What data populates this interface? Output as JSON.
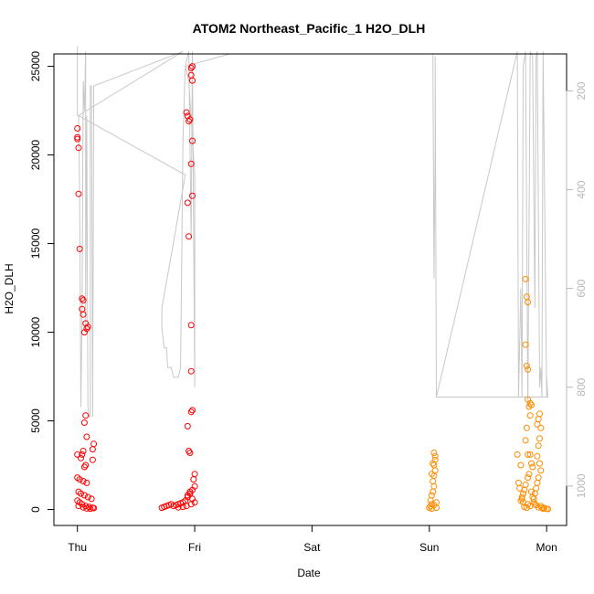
{
  "chart_data": {
    "type": "scatter",
    "title": "ATOM2 Northeast_Pacific_1 H2O_DLH",
    "xlabel": "Date",
    "ylabel": "H2O_DLH",
    "x_ticks": [
      "Thu",
      "Fri",
      "Sat",
      "Sun",
      "Mon"
    ],
    "x_range_days": [
      -0.2,
      4.17
    ],
    "ylim": [
      -900,
      25700
    ],
    "y_ticks": [
      0,
      5000,
      10000,
      15000,
      20000,
      25000
    ],
    "y2_ticks": [
      200,
      400,
      600,
      800,
      1000
    ],
    "y2lim": [
      1080,
      125
    ],
    "grid": false,
    "colors": {
      "flight1": "#ff0000",
      "flight2": "#ff8c00",
      "pressure": "#c8c8c8",
      "right_axis": "#b8b8b8"
    },
    "series": [
      {
        "color": "#ff0000",
        "points": [
          [
            0.0,
            21500
          ],
          [
            0.0,
            21000
          ],
          [
            0.01,
            20400
          ],
          [
            0.0,
            20900
          ],
          [
            0.01,
            17800
          ],
          [
            0.02,
            14700
          ],
          [
            0.04,
            11900
          ],
          [
            0.05,
            11800
          ],
          [
            0.04,
            11300
          ],
          [
            0.05,
            11000
          ],
          [
            0.06,
            10000
          ],
          [
            0.07,
            10500
          ],
          [
            0.08,
            10200
          ],
          [
            0.09,
            10300
          ],
          [
            0.07,
            5300
          ],
          [
            0.06,
            4900
          ],
          [
            0.08,
            4100
          ],
          [
            0.14,
            3700
          ],
          [
            0.13,
            3400
          ],
          [
            0.05,
            3300
          ],
          [
            0.04,
            3100
          ],
          [
            0.0,
            3100
          ],
          [
            0.03,
            2900
          ],
          [
            0.07,
            2500
          ],
          [
            0.06,
            2400
          ],
          [
            0.13,
            2800
          ],
          [
            0.0,
            1800
          ],
          [
            0.02,
            1700
          ],
          [
            0.05,
            1600
          ],
          [
            0.08,
            1500
          ],
          [
            0.01,
            1000
          ],
          [
            0.03,
            900
          ],
          [
            0.06,
            800
          ],
          [
            0.09,
            700
          ],
          [
            0.12,
            600
          ],
          [
            0.0,
            500
          ],
          [
            0.02,
            400
          ],
          [
            0.04,
            300
          ],
          [
            0.07,
            200
          ],
          [
            0.1,
            150
          ],
          [
            0.13,
            100
          ],
          [
            0.11,
            50
          ],
          [
            0.14,
            80
          ],
          [
            0.01,
            200
          ],
          [
            0.05,
            120
          ],
          [
            0.08,
            60
          ],
          [
            0.72,
            100
          ],
          [
            0.74,
            150
          ],
          [
            0.76,
            200
          ],
          [
            0.78,
            250
          ],
          [
            0.8,
            300
          ],
          [
            0.82,
            200
          ],
          [
            0.84,
            250
          ],
          [
            0.86,
            300
          ],
          [
            0.88,
            350
          ],
          [
            0.9,
            400
          ],
          [
            0.92,
            500
          ],
          [
            0.94,
            700
          ],
          [
            0.96,
            900
          ],
          [
            0.98,
            1100
          ],
          [
            1.0,
            1300
          ],
          [
            0.93,
            22400
          ],
          [
            0.94,
            22200
          ],
          [
            0.95,
            21900
          ],
          [
            0.96,
            22000
          ],
          [
            0.97,
            24900
          ],
          [
            0.98,
            25000
          ],
          [
            0.97,
            24500
          ],
          [
            0.98,
            24200
          ],
          [
            0.98,
            20800
          ],
          [
            0.97,
            19500
          ],
          [
            0.98,
            17700
          ],
          [
            0.94,
            17300
          ],
          [
            0.95,
            15400
          ],
          [
            0.97,
            10400
          ],
          [
            0.97,
            7800
          ],
          [
            0.98,
            5600
          ],
          [
            0.97,
            5500
          ],
          [
            0.94,
            4700
          ],
          [
            0.95,
            3300
          ],
          [
            0.96,
            3200
          ],
          [
            1.0,
            2000
          ],
          [
            0.99,
            1700
          ],
          [
            0.96,
            1000
          ],
          [
            0.94,
            800
          ],
          [
            0.98,
            600
          ],
          [
            1.0,
            400
          ],
          [
            0.97,
            300
          ],
          [
            0.93,
            200
          ],
          [
            0.9,
            150
          ],
          [
            0.86,
            120
          ]
        ]
      },
      {
        "color": "#ff8c00",
        "points": [
          [
            3.0,
            100
          ],
          [
            3.01,
            200
          ],
          [
            3.02,
            300
          ],
          [
            3.01,
            500
          ],
          [
            3.02,
            800
          ],
          [
            3.03,
            1000
          ],
          [
            3.04,
            1300
          ],
          [
            3.03,
            1600
          ],
          [
            3.04,
            1900
          ],
          [
            3.05,
            2200
          ],
          [
            3.04,
            2500
          ],
          [
            3.05,
            2800
          ],
          [
            3.05,
            3000
          ],
          [
            3.04,
            3200
          ],
          [
            3.03,
            2600
          ],
          [
            3.02,
            2000
          ],
          [
            3.06,
            400
          ],
          [
            3.06,
            100
          ],
          [
            3.02,
            50
          ],
          [
            3.04,
            250
          ],
          [
            3.75,
            3100
          ],
          [
            3.78,
            2500
          ],
          [
            3.76,
            1500
          ],
          [
            3.77,
            1200
          ],
          [
            3.79,
            600
          ],
          [
            3.8,
            400
          ],
          [
            3.82,
            13000
          ],
          [
            3.83,
            12000
          ],
          [
            3.84,
            11700
          ],
          [
            3.82,
            9300
          ],
          [
            3.83,
            8100
          ],
          [
            3.84,
            7900
          ],
          [
            3.84,
            6200
          ],
          [
            3.85,
            5800
          ],
          [
            3.86,
            6000
          ],
          [
            3.87,
            5900
          ],
          [
            3.86,
            5300
          ],
          [
            3.83,
            4600
          ],
          [
            3.82,
            3900
          ],
          [
            3.84,
            3100
          ],
          [
            3.86,
            3100
          ],
          [
            3.87,
            2600
          ],
          [
            3.88,
            2400
          ],
          [
            3.85,
            2000
          ],
          [
            3.84,
            1800
          ],
          [
            3.82,
            1400
          ],
          [
            3.81,
            1100
          ],
          [
            3.8,
            900
          ],
          [
            3.79,
            700
          ],
          [
            3.78,
            500
          ],
          [
            3.94,
            5400
          ],
          [
            3.93,
            5100
          ],
          [
            3.92,
            4800
          ],
          [
            3.95,
            4600
          ],
          [
            3.94,
            4000
          ],
          [
            3.93,
            3600
          ],
          [
            3.92,
            3000
          ],
          [
            3.94,
            2600
          ],
          [
            3.95,
            2200
          ],
          [
            3.93,
            1800
          ],
          [
            3.92,
            1500
          ],
          [
            3.91,
            1200
          ],
          [
            3.9,
            900
          ],
          [
            3.89,
            600
          ],
          [
            3.9,
            300
          ],
          [
            3.95,
            200
          ],
          [
            3.96,
            100
          ],
          [
            3.97,
            50
          ],
          [
            4.0,
            40
          ],
          [
            4.01,
            30
          ],
          [
            3.98,
            80
          ],
          [
            3.86,
            200
          ],
          [
            3.84,
            300
          ],
          [
            3.83,
            100
          ],
          [
            3.81,
            150
          ],
          [
            3.88,
            700
          ],
          [
            3.87,
            1000
          ],
          [
            3.89,
            400
          ],
          [
            3.91,
            250
          ],
          [
            3.93,
            120
          ]
        ]
      }
    ],
    "pressure_line": [
      [
        0.0,
        110
      ],
      [
        0.0,
        150
      ],
      [
        0.0,
        250
      ],
      [
        0.01,
        250
      ],
      [
        0.02,
        420
      ],
      [
        0.03,
        840
      ],
      [
        0.04,
        650
      ],
      [
        0.05,
        180
      ],
      [
        0.06,
        240
      ],
      [
        0.07,
        120
      ],
      [
        0.07,
        690
      ],
      [
        0.08,
        250
      ],
      [
        0.09,
        840
      ],
      [
        0.1,
        860
      ],
      [
        0.11,
        860
      ],
      [
        0.11,
        190
      ],
      [
        0.12,
        190
      ],
      [
        0.13,
        860
      ],
      [
        0.14,
        190
      ],
      [
        0.9,
        120
      ],
      [
        0.01,
        250
      ],
      [
        0.92,
        370
      ],
      [
        0.72,
        640
      ],
      [
        0.72,
        680
      ],
      [
        0.74,
        720
      ],
      [
        0.76,
        720
      ],
      [
        0.77,
        760
      ],
      [
        0.8,
        760
      ],
      [
        0.82,
        780
      ],
      [
        0.86,
        780
      ],
      [
        0.88,
        760
      ],
      [
        0.9,
        300
      ],
      [
        0.92,
        150
      ],
      [
        0.95,
        120
      ],
      [
        0.97,
        500
      ],
      [
        0.98,
        120
      ],
      [
        1.0,
        800
      ],
      [
        1.0,
        370
      ],
      [
        0.95,
        180
      ],
      [
        0.92,
        150
      ],
      [
        1.3,
        125
      ],
      [
        3.0,
        125
      ],
      [
        3.03,
        125
      ],
      [
        3.04,
        580
      ],
      [
        3.05,
        310
      ],
      [
        3.05,
        130
      ],
      [
        3.06,
        820
      ],
      [
        3.75,
        120
      ],
      [
        3.76,
        820
      ],
      [
        3.78,
        600
      ],
      [
        3.79,
        820
      ],
      [
        3.8,
        150
      ],
      [
        3.82,
        120
      ],
      [
        3.84,
        840
      ],
      [
        3.86,
        120
      ],
      [
        3.88,
        130
      ],
      [
        3.9,
        640
      ],
      [
        3.91,
        130
      ],
      [
        3.92,
        120
      ],
      [
        3.94,
        800
      ],
      [
        3.95,
        760
      ],
      [
        3.96,
        820
      ],
      [
        3.97,
        120
      ],
      [
        4.0,
        820
      ],
      [
        4.0,
        780
      ],
      [
        4.01,
        820
      ],
      [
        3.06,
        820
      ],
      [
        4.0,
        820
      ]
    ]
  }
}
